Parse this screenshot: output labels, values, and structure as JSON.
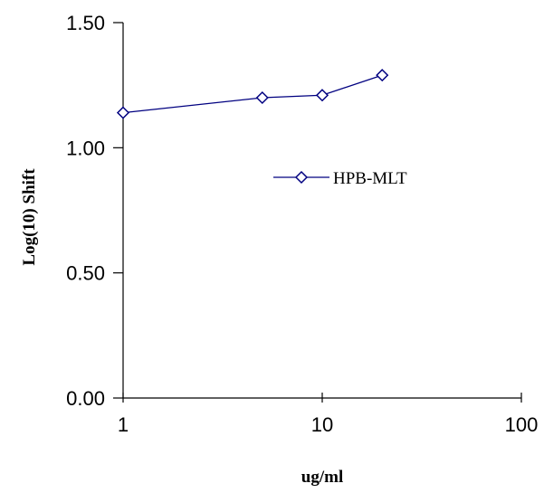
{
  "chart_data": {
    "type": "line",
    "xscale": "log",
    "xlim": [
      1,
      100
    ],
    "ylim": [
      0,
      1.5
    ],
    "xticks": [
      1,
      10,
      100
    ],
    "xtick_labels": [
      "1",
      "10",
      "100"
    ],
    "yticks": [
      0,
      0.5,
      1.0,
      1.5
    ],
    "ytick_labels": [
      "0.00",
      "0.50",
      "1.00",
      "1.50"
    ],
    "xlabel": "ug/ml",
    "ylabel": "Log(10) Shift",
    "grid": false,
    "legend_position": "center-right",
    "series": [
      {
        "name": "HPB-MLT",
        "color": "#000080",
        "marker": "diamond-open",
        "x": [
          1,
          5,
          10,
          20
        ],
        "y": [
          1.14,
          1.2,
          1.21,
          1.29
        ]
      }
    ]
  }
}
